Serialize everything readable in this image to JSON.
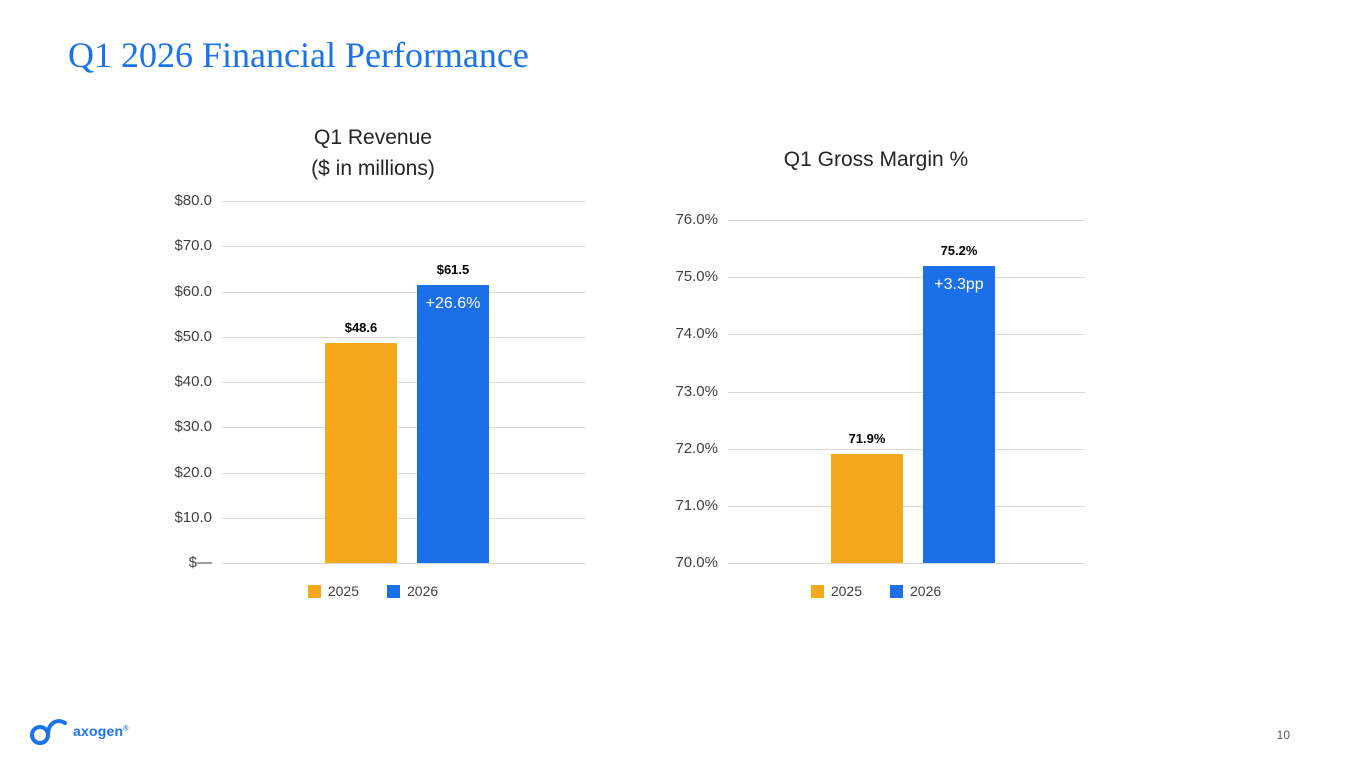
{
  "slide": {
    "title": "Q1 2026 Financial Performance",
    "page_number": "10",
    "logo_text": "axogen",
    "logo_mark": "®"
  },
  "colors": {
    "title_blue": "#1a73e8",
    "bar_2025": "#F6A81C",
    "bar_2026": "#1B6FE8",
    "gridline": "#d9d9d9",
    "tick_text": "#404040"
  },
  "chart_data": [
    {
      "type": "bar",
      "title": "Q1 Revenue",
      "subtitle": "($ in millions)",
      "categories": [
        "2025",
        "2026"
      ],
      "values": [
        48.6,
        61.5
      ],
      "data_labels": [
        "$48.6",
        "$61.5"
      ],
      "bar_annotations": [
        null,
        "+26.6%"
      ],
      "ylim": [
        0,
        80
      ],
      "ytick_step": 10,
      "ytick_labels": [
        "$—",
        "$10.0",
        "$20.0",
        "$30.0",
        "$40.0",
        "$50.0",
        "$60.0",
        "$70.0",
        "$80.0"
      ],
      "legend": [
        "2025",
        "2026"
      ],
      "grid": true,
      "legend_position": "bottom"
    },
    {
      "type": "bar",
      "title": "Q1 Gross Margin %",
      "subtitle": "",
      "categories": [
        "2025",
        "2026"
      ],
      "values": [
        71.9,
        75.2
      ],
      "data_labels": [
        "71.9%",
        "75.2%"
      ],
      "bar_annotations": [
        null,
        "+3.3pp"
      ],
      "ylim": [
        70,
        76
      ],
      "ytick_step": 1,
      "ytick_labels": [
        "70.0%",
        "71.0%",
        "72.0%",
        "73.0%",
        "74.0%",
        "75.0%",
        "76.0%"
      ],
      "legend": [
        "2025",
        "2026"
      ],
      "grid": true,
      "legend_position": "bottom"
    }
  ]
}
